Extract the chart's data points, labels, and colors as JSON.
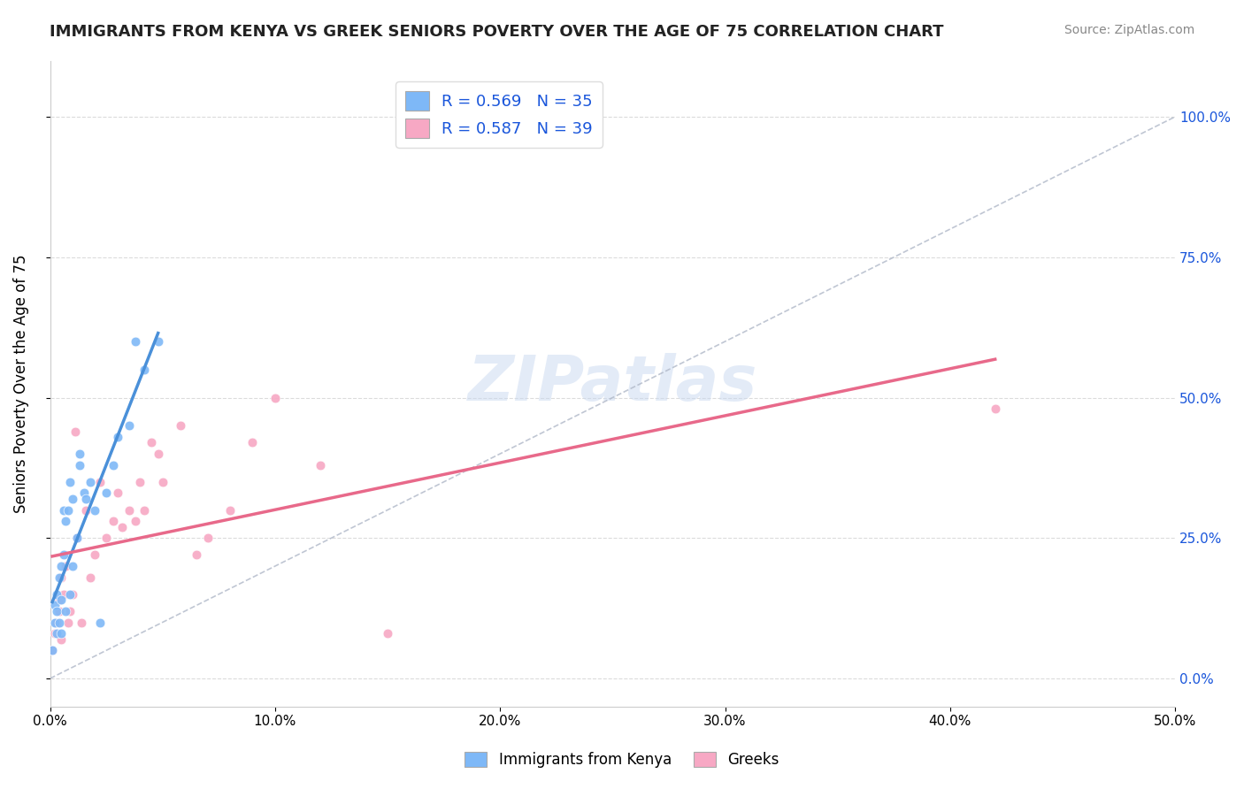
{
  "title": "IMMIGRANTS FROM KENYA VS GREEK SENIORS POVERTY OVER THE AGE OF 75 CORRELATION CHART",
  "source": "Source: ZipAtlas.com",
  "xlabel": "",
  "ylabel": "Seniors Poverty Over the Age of 75",
  "xlim": [
    0.0,
    0.5
  ],
  "ylim": [
    -0.05,
    1.1
  ],
  "xtick_labels": [
    "0.0%",
    "10.0%",
    "20.0%",
    "30.0%",
    "40.0%",
    "50.0%"
  ],
  "xtick_vals": [
    0.0,
    0.1,
    0.2,
    0.3,
    0.4,
    0.5
  ],
  "ytick_labels": [
    "0.0%",
    "25.0%",
    "50.0%",
    "75.0%",
    "100.0%"
  ],
  "ytick_vals": [
    0.0,
    0.25,
    0.5,
    0.75,
    1.0
  ],
  "watermark": "ZIPatlas",
  "legend_R1": "0.569",
  "legend_N1": "35",
  "legend_R2": "0.587",
  "legend_N2": "39",
  "color_kenya": "#7eb8f7",
  "color_greek": "#f7a8c4",
  "color_kenya_line": "#4a90d9",
  "color_greek_line": "#e8698a",
  "color_diagonal": "#b0b8c8",
  "legend_text_color": "#1a56db",
  "kenya_x": [
    0.001,
    0.002,
    0.002,
    0.003,
    0.003,
    0.003,
    0.004,
    0.004,
    0.005,
    0.005,
    0.005,
    0.006,
    0.006,
    0.007,
    0.007,
    0.008,
    0.009,
    0.009,
    0.01,
    0.01,
    0.012,
    0.013,
    0.013,
    0.015,
    0.016,
    0.018,
    0.02,
    0.022,
    0.025,
    0.028,
    0.03,
    0.035,
    0.038,
    0.042,
    0.048
  ],
  "kenya_y": [
    0.05,
    0.1,
    0.13,
    0.08,
    0.12,
    0.15,
    0.18,
    0.1,
    0.08,
    0.2,
    0.14,
    0.22,
    0.3,
    0.12,
    0.28,
    0.3,
    0.15,
    0.35,
    0.32,
    0.2,
    0.25,
    0.4,
    0.38,
    0.33,
    0.32,
    0.35,
    0.3,
    0.1,
    0.33,
    0.38,
    0.43,
    0.45,
    0.6,
    0.55,
    0.6
  ],
  "greek_x": [
    0.001,
    0.002,
    0.003,
    0.004,
    0.004,
    0.005,
    0.005,
    0.006,
    0.007,
    0.008,
    0.009,
    0.01,
    0.011,
    0.012,
    0.014,
    0.016,
    0.018,
    0.02,
    0.022,
    0.025,
    0.028,
    0.03,
    0.032,
    0.035,
    0.038,
    0.04,
    0.042,
    0.045,
    0.048,
    0.05,
    0.058,
    0.065,
    0.07,
    0.08,
    0.09,
    0.1,
    0.12,
    0.15,
    0.42
  ],
  "greek_y": [
    0.05,
    0.08,
    0.1,
    0.12,
    0.14,
    0.07,
    0.18,
    0.15,
    0.2,
    0.1,
    0.12,
    0.15,
    0.44,
    0.25,
    0.1,
    0.3,
    0.18,
    0.22,
    0.35,
    0.25,
    0.28,
    0.33,
    0.27,
    0.3,
    0.28,
    0.35,
    0.3,
    0.42,
    0.4,
    0.35,
    0.45,
    0.22,
    0.25,
    0.3,
    0.42,
    0.5,
    0.38,
    0.08,
    0.48
  ]
}
